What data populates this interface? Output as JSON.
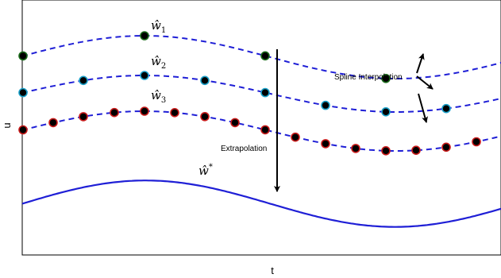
{
  "axes": {
    "x_label": "t",
    "y_label": "u"
  },
  "colors": {
    "curve": "#1f1fd6",
    "axis": "#000000",
    "arrow": "#000000"
  },
  "curves": [
    {
      "id": "w1",
      "label_base": "ŵ",
      "label_sub": "1",
      "style": "dashed",
      "points": [
        {
          "color": "#1a6b1a"
        },
        {
          "color": "#1a6b1a"
        },
        {
          "color": "#1a6b1a"
        },
        {
          "color": "#1a6b1a"
        }
      ]
    },
    {
      "id": "w2",
      "label_base": "ŵ",
      "label_sub": "2",
      "style": "dashed",
      "points": [
        {
          "color": "#1aa0c8"
        },
        {
          "color": "#1aa0c8"
        },
        {
          "color": "#1aa0c8"
        },
        {
          "color": "#1aa0c8"
        },
        {
          "color": "#1aa0c8"
        },
        {
          "color": "#1aa0c8"
        },
        {
          "color": "#1aa0c8"
        },
        {
          "color": "#1aa0c8"
        },
        {
          "color": "#1aa0c8"
        }
      ]
    },
    {
      "id": "w3",
      "label_base": "ŵ",
      "label_sub": "3",
      "style": "dashed",
      "points": [
        {
          "color": "#c81a1a"
        },
        {
          "color": "#c81a1a"
        },
        {
          "color": "#c81a1a"
        },
        {
          "color": "#c81a1a"
        },
        {
          "color": "#c81a1a"
        },
        {
          "color": "#c81a1a"
        },
        {
          "color": "#c81a1a"
        },
        {
          "color": "#c81a1a"
        },
        {
          "color": "#c81a1a"
        },
        {
          "color": "#c81a1a"
        },
        {
          "color": "#c81a1a"
        },
        {
          "color": "#c81a1a"
        },
        {
          "color": "#c81a1a"
        },
        {
          "color": "#c81a1a"
        },
        {
          "color": "#c81a1a"
        },
        {
          "color": "#c81a1a"
        }
      ]
    },
    {
      "id": "wstar",
      "label_base": "ŵ",
      "label_sup": "*",
      "style": "solid"
    }
  ],
  "annotations": {
    "extrapolation": "Extrapolation",
    "spline": "Spline Interpolation"
  }
}
